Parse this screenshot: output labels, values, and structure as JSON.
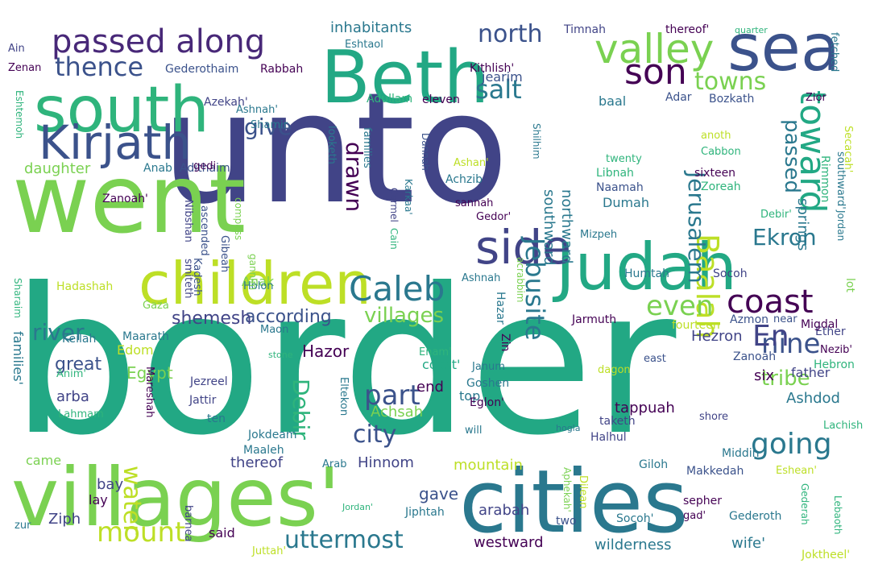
{
  "words": [
    {
      "text": "border",
      "color": "#22a884"
    },
    {
      "text": "unto",
      "color": "#414487"
    },
    {
      "text": "went",
      "color": "#7ad151"
    },
    {
      "text": "villages'",
      "color": "#7ad151"
    },
    {
      "text": "cities",
      "color": "#2a788e"
    },
    {
      "text": "Beth",
      "color": "#22a884"
    },
    {
      "text": "south",
      "color": "#2fb47c"
    },
    {
      "text": "children",
      "color": "#bddf26"
    },
    {
      "text": "Judah",
      "color": "#22a884"
    },
    {
      "text": "sea",
      "color": "#3b528b"
    },
    {
      "text": "Kirjath",
      "color": "#3b528b"
    },
    {
      "text": "passed along",
      "color": "#482878"
    },
    {
      "text": "side",
      "color": "#414487"
    },
    {
      "text": "Caleb",
      "color": "#2a788e"
    },
    {
      "text": "valley",
      "color": "#7ad151"
    },
    {
      "text": "son",
      "color": "#440154"
    },
    {
      "text": "toward",
      "color": "#22a884"
    },
    {
      "text": "Baalah",
      "color": "#bddf26"
    },
    {
      "text": "coast",
      "color": "#440154"
    },
    {
      "text": "Jerusalem",
      "color": "#2a788e"
    },
    {
      "text": "Jebusite",
      "color": "#2a788e"
    },
    {
      "text": "thence",
      "color": "#3b528b"
    },
    {
      "text": "north",
      "color": "#3b528b"
    },
    {
      "text": "salt",
      "color": "#2a788e"
    },
    {
      "text": "give",
      "color": "#3b528b"
    },
    {
      "text": "drawn",
      "color": "#440154"
    },
    {
      "text": "towns",
      "color": "#7ad151"
    },
    {
      "text": "river",
      "color": "#2a788e"
    },
    {
      "text": "even",
      "color": "#7ad151"
    },
    {
      "text": "Ekron",
      "color": "#2a788e"
    },
    {
      "text": "passed",
      "color": "#2a788e"
    },
    {
      "text": "nine",
      "color": "#3b528b"
    },
    {
      "text": "En",
      "color": "#414487"
    },
    {
      "text": "part",
      "color": "#3b528b"
    },
    {
      "text": "city",
      "color": "#3b528b"
    },
    {
      "text": "going",
      "color": "#2a788e"
    },
    {
      "text": "water",
      "color": "#bddf26"
    },
    {
      "text": "mount",
      "color": "#bddf26"
    },
    {
      "text": "uttermost",
      "color": "#2a788e"
    },
    {
      "text": "Debir",
      "color": "#2fb47c"
    },
    {
      "text": "tribe",
      "color": "#7ad151"
    },
    {
      "text": "according",
      "color": "#3b528b"
    },
    {
      "text": "Anak",
      "color": "#7ad151"
    },
    {
      "text": "great",
      "color": "#3b528b"
    },
    {
      "text": "shemesh",
      "color": "#414487"
    },
    {
      "text": "villages",
      "color": "#7ad151"
    },
    {
      "text": "Hezron",
      "color": "#414487"
    },
    {
      "text": "Hazor",
      "color": "#440154"
    },
    {
      "text": "springs",
      "color": "#2a788e"
    },
    {
      "text": "inhabitants",
      "color": "#2a788e"
    },
    {
      "text": "southward",
      "color": "#2a788e"
    },
    {
      "text": "northward",
      "color": "#2a788e"
    },
    {
      "text": "daughter",
      "color": "#7ad151"
    },
    {
      "text": "Edom",
      "color": "#bddf26"
    },
    {
      "text": "Egypt",
      "color": "#7ad151"
    },
    {
      "text": "arba",
      "color": "#414487"
    },
    {
      "text": "Hinnom",
      "color": "#414487"
    },
    {
      "text": "Achsah",
      "color": "#7ad151"
    },
    {
      "text": "mountain",
      "color": "#bddf26"
    },
    {
      "text": "thereof",
      "color": "#414487"
    },
    {
      "text": "arabah",
      "color": "#414487"
    },
    {
      "text": "gave",
      "color": "#3b528b"
    },
    {
      "text": "westward",
      "color": "#440154"
    },
    {
      "text": "wilderness",
      "color": "#2a788e"
    },
    {
      "text": "wife'",
      "color": "#2a788e"
    },
    {
      "text": "father",
      "color": "#414487"
    },
    {
      "text": "Ashdod",
      "color": "#2a788e"
    },
    {
      "text": "six",
      "color": "#440154"
    },
    {
      "text": "end",
      "color": "#440154"
    },
    {
      "text": "coast'",
      "color": "#22a884"
    },
    {
      "text": "tappuah",
      "color": "#440154"
    },
    {
      "text": "top",
      "color": "#2a788e"
    },
    {
      "text": "Ziph",
      "color": "#414487"
    },
    {
      "text": "said",
      "color": "#440154"
    },
    {
      "text": "bay",
      "color": "#414487"
    },
    {
      "text": "lay",
      "color": "#440154"
    },
    {
      "text": "came",
      "color": "#7ad151"
    },
    {
      "text": "Keilah",
      "color": "#2a788e"
    },
    {
      "text": "Maarath",
      "color": "#2a788e"
    },
    {
      "text": "Anab",
      "color": "#2a788e"
    },
    {
      "text": "Adithaim",
      "color": "#3b528b"
    },
    {
      "text": "Shamir",
      "color": "#2a788e"
    },
    {
      "text": "Azekah'",
      "color": "#414487"
    },
    {
      "text": "Ashnah'",
      "color": "#2a788e"
    },
    {
      "text": "Adullam",
      "color": "#2fb47c"
    },
    {
      "text": "eleven",
      "color": "#440154"
    },
    {
      "text": "Adar",
      "color": "#3b528b"
    },
    {
      "text": "Bozkath",
      "color": "#3b528b"
    },
    {
      "text": "Rabbah",
      "color": "#440154"
    },
    {
      "text": "Gederothaim",
      "color": "#3b528b"
    },
    {
      "text": "Eshtaol",
      "color": "#2a788e"
    },
    {
      "text": "Kithlish'",
      "color": "#440154"
    },
    {
      "text": "jearim",
      "color": "#3b528b"
    },
    {
      "text": "Timnah",
      "color": "#414487"
    },
    {
      "text": "thereof'",
      "color": "#440154"
    },
    {
      "text": "quarter",
      "color": "#2fb47c"
    },
    {
      "text": "fetched",
      "color": "#2a788e"
    },
    {
      "text": "Secacah'",
      "color": "#bddf26"
    },
    {
      "text": "Zior",
      "color": "#440154"
    },
    {
      "text": "baal",
      "color": "#2a788e"
    },
    {
      "text": "anoth",
      "color": "#bddf26"
    },
    {
      "text": "Cabbon",
      "color": "#2fb47c"
    },
    {
      "text": "sixteen",
      "color": "#440154"
    },
    {
      "text": "Zoreah",
      "color": "#2fb47c"
    },
    {
      "text": "Libnah",
      "color": "#2fb47c"
    },
    {
      "text": "Naamah",
      "color": "#3b528b"
    },
    {
      "text": "twenty",
      "color": "#2fb47c"
    },
    {
      "text": "Dumah",
      "color": "#2a788e"
    },
    {
      "text": "Mizpeh",
      "color": "#2a788e"
    },
    {
      "text": "Humtah",
      "color": "#2a788e"
    },
    {
      "text": "Socoh",
      "color": "#414487"
    },
    {
      "text": "Ain",
      "color": "#414487"
    },
    {
      "text": "Zenan",
      "color": "#440154"
    },
    {
      "text": "Eshtemoh",
      "color": "#2fb47c"
    },
    {
      "text": "Sharaim",
      "color": "#2fb47c"
    },
    {
      "text": "families'",
      "color": "#2a788e"
    },
    {
      "text": "Hadashah",
      "color": "#bddf26"
    },
    {
      "text": "Anim'",
      "color": "#2fb47c"
    },
    {
      "text": "Lahmam",
      "color": "#2fb47c"
    },
    {
      "text": "Gaza",
      "color": "#7ad151"
    },
    {
      "text": "Zanoah'",
      "color": "#440154"
    },
    {
      "text": "gedi",
      "color": "#440154"
    },
    {
      "text": "Nibshan",
      "color": "#414487"
    },
    {
      "text": "ascended",
      "color": "#3b528b"
    },
    {
      "text": "Gibeah",
      "color": "#3b528b"
    },
    {
      "text": "compass",
      "color": "#7ad151"
    },
    {
      "text": "looketh",
      "color": "#2a788e"
    },
    {
      "text": "families",
      "color": "#2a788e"
    },
    {
      "text": "Carmel",
      "color": "#414487"
    },
    {
      "text": "Cain",
      "color": "#2fb47c"
    },
    {
      "text": "Karkaa'",
      "color": "#2a788e"
    },
    {
      "text": "Dannah",
      "color": "#3b528b"
    },
    {
      "text": "Shilhim",
      "color": "#2a788e"
    },
    {
      "text": "Ashan'",
      "color": "#bddf26"
    },
    {
      "text": "Achzib",
      "color": "#2a788e"
    },
    {
      "text": "sannah",
      "color": "#440154"
    },
    {
      "text": "Gedor'",
      "color": "#440154"
    },
    {
      "text": "Ashnah",
      "color": "#2a788e"
    },
    {
      "text": "acrabbim",
      "color": "#7ad151"
    },
    {
      "text": "Rimmon",
      "color": "#2fb47c"
    },
    {
      "text": "southward'",
      "color": "#2a788e"
    },
    {
      "text": "Jordan",
      "color": "#2a788e"
    },
    {
      "text": "lot",
      "color": "#7ad151"
    },
    {
      "text": "Debir'",
      "color": "#2fb47c"
    },
    {
      "text": "Ether",
      "color": "#414487"
    },
    {
      "text": "Hebron",
      "color": "#2fb47c"
    },
    {
      "text": "Nezib'",
      "color": "#440154"
    },
    {
      "text": "Zanoah",
      "color": "#3b528b"
    },
    {
      "text": "Migdal",
      "color": "#440154"
    },
    {
      "text": "near",
      "color": "#3b528b"
    },
    {
      "text": "Azmon",
      "color": "#3b528b"
    },
    {
      "text": "fourteen",
      "color": "#bddf26"
    },
    {
      "text": "east",
      "color": "#3b528b"
    },
    {
      "text": "dagon",
      "color": "#bddf26"
    },
    {
      "text": "Goshen",
      "color": "#2a788e"
    },
    {
      "text": "Janum",
      "color": "#2a788e"
    },
    {
      "text": "Enam'",
      "color": "#2fb47c"
    },
    {
      "text": "Hazar",
      "color": "#2a788e"
    },
    {
      "text": "Zin",
      "color": "#440154"
    },
    {
      "text": "Kadesh",
      "color": "#3b528b"
    },
    {
      "text": "Holon",
      "color": "#2a788e"
    },
    {
      "text": "smiteth",
      "color": "#414487"
    },
    {
      "text": "gannim",
      "color": "#7ad151"
    },
    {
      "text": "Jezreel",
      "color": "#414487"
    },
    {
      "text": "Jattir",
      "color": "#414487"
    },
    {
      "text": "ten",
      "color": "#2a788e"
    },
    {
      "text": "Mareshah",
      "color": "#440154"
    },
    {
      "text": "Maon",
      "color": "#2a788e"
    },
    {
      "text": "stone",
      "color": "#2fb47c"
    },
    {
      "text": "Jarmuth",
      "color": "#440154"
    },
    {
      "text": "shore",
      "color": "#414487"
    },
    {
      "text": "Eglon'",
      "color": "#440154"
    },
    {
      "text": "taketh",
      "color": "#414487"
    },
    {
      "text": "Lachish",
      "color": "#2fb47c"
    },
    {
      "text": "Halhul",
      "color": "#414487"
    },
    {
      "text": "Middin",
      "color": "#2a788e"
    },
    {
      "text": "Jokdeam",
      "color": "#2a788e"
    },
    {
      "text": "Maaleh",
      "color": "#2a788e"
    },
    {
      "text": "Eltekon",
      "color": "#2a788e"
    },
    {
      "text": "will",
      "color": "#2a788e"
    },
    {
      "text": "Aphekah'",
      "color": "#7ad151"
    },
    {
      "text": "hogla",
      "color": "#2a788e"
    },
    {
      "text": "Giloh",
      "color": "#2a788e"
    },
    {
      "text": "Makkedah",
      "color": "#3b528b"
    },
    {
      "text": "Eshean'",
      "color": "#bddf26"
    },
    {
      "text": "Gederah",
      "color": "#2fb47c"
    },
    {
      "text": "Lebaoth",
      "color": "#2fb47c"
    },
    {
      "text": "Arab",
      "color": "#2a788e"
    },
    {
      "text": "Jiphtah",
      "color": "#2a788e"
    },
    {
      "text": "Dilean",
      "color": "#bddf26"
    },
    {
      "text": "two",
      "color": "#3b528b"
    },
    {
      "text": "sepher",
      "color": "#440154"
    },
    {
      "text": "gad'",
      "color": "#440154"
    },
    {
      "text": "Gederoth",
      "color": "#2a788e"
    },
    {
      "text": "Socoh'",
      "color": "#2a788e"
    },
    {
      "text": "Joktheel'",
      "color": "#bddf26"
    },
    {
      "text": "barnea",
      "color": "#414487"
    },
    {
      "text": "Jordan'",
      "color": "#2fb47c"
    },
    {
      "text": "Juttah'",
      "color": "#bddf26"
    },
    {
      "text": "zur",
      "color": "#2a788e"
    }
  ]
}
